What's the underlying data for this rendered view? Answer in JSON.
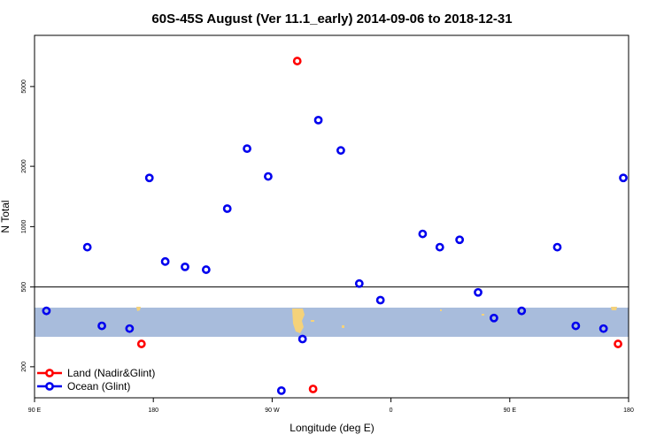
{
  "chart_data": {
    "type": "scatter",
    "title": "60S-45S August (Ver 11.1_early)   2014-09-06 to 2018-12-31",
    "xlabel": "Longitude (deg E)",
    "ylabel": "N Total",
    "y_scale": "log",
    "x_ticks": [
      {
        "value": 90,
        "label": "90 E"
      },
      {
        "value": 180,
        "label": "180"
      },
      {
        "value": 270,
        "label": "90 W"
      },
      {
        "value": 360,
        "label": "0"
      },
      {
        "value": 450,
        "label": "90 E"
      },
      {
        "value": 540,
        "label": "180"
      }
    ],
    "y_ticks": [
      {
        "value": 200,
        "label": "200"
      },
      {
        "value": 500,
        "label": "500"
      },
      {
        "value": 1000,
        "label": "1000"
      },
      {
        "value": 2000,
        "label": "2000"
      },
      {
        "value": 5000,
        "label": "5000"
      }
    ],
    "xlim": [
      90,
      540
    ],
    "ylim": [
      140,
      9000
    ],
    "reference_line_y": 500,
    "band_color": "#a8bcdc",
    "land_color": "#f5d27a",
    "series": [
      {
        "name": "Land (Nadir&Glint)",
        "color": "#ff0000",
        "points": [
          {
            "x": 171,
            "y": 260
          },
          {
            "x": 289,
            "y": 6700
          },
          {
            "x": 301,
            "y": 155
          },
          {
            "x": 532,
            "y": 260
          }
        ]
      },
      {
        "name": "Ocean (Glint)",
        "color": "#0000ee",
        "points": [
          {
            "x": 99,
            "y": 380
          },
          {
            "x": 130,
            "y": 790
          },
          {
            "x": 141,
            "y": 320
          },
          {
            "x": 162,
            "y": 310
          },
          {
            "x": 177,
            "y": 1750
          },
          {
            "x": 189,
            "y": 670
          },
          {
            "x": 204,
            "y": 630
          },
          {
            "x": 220,
            "y": 610
          },
          {
            "x": 236,
            "y": 1230
          },
          {
            "x": 251,
            "y": 2450
          },
          {
            "x": 267,
            "y": 1780
          },
          {
            "x": 277,
            "y": 152
          },
          {
            "x": 293,
            "y": 275
          },
          {
            "x": 305,
            "y": 3400
          },
          {
            "x": 322,
            "y": 2400
          },
          {
            "x": 336,
            "y": 520
          },
          {
            "x": 352,
            "y": 430
          },
          {
            "x": 384,
            "y": 920
          },
          {
            "x": 397,
            "y": 790
          },
          {
            "x": 412,
            "y": 860
          },
          {
            "x": 426,
            "y": 470
          },
          {
            "x": 438,
            "y": 350
          },
          {
            "x": 459,
            "y": 380
          },
          {
            "x": 486,
            "y": 790
          },
          {
            "x": 500,
            "y": 320
          },
          {
            "x": 521,
            "y": 310
          },
          {
            "x": 536,
            "y": 1750
          }
        ]
      }
    ],
    "legend": {
      "placement": "bottom-left"
    }
  }
}
